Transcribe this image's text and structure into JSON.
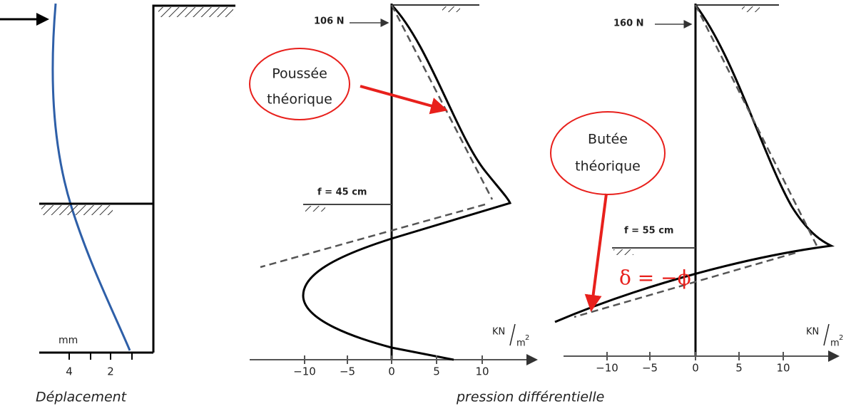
{
  "left_panel": {
    "unit": "mm",
    "ticks": [
      "4",
      "2"
    ],
    "caption": "Déplacement"
  },
  "middle_panel": {
    "force": "106 N",
    "callout": [
      "Poussée",
      "théorique"
    ],
    "depth": "f = 45 cm",
    "unit": {
      "num": "KN",
      "den": "m",
      "exp": "2"
    },
    "ticks": [
      "−10",
      "−5",
      "0",
      "5",
      "10"
    ]
  },
  "right_panel": {
    "force": "160 N",
    "callout": [
      "Butée",
      "théorique"
    ],
    "depth": "f = 55 cm",
    "angle": "δ = −ϕ",
    "unit": {
      "num": "KN",
      "den": "m",
      "exp": "2"
    },
    "ticks": [
      "−10",
      "−5",
      "0",
      "5",
      "10"
    ]
  },
  "caption": "pression différentielle"
}
